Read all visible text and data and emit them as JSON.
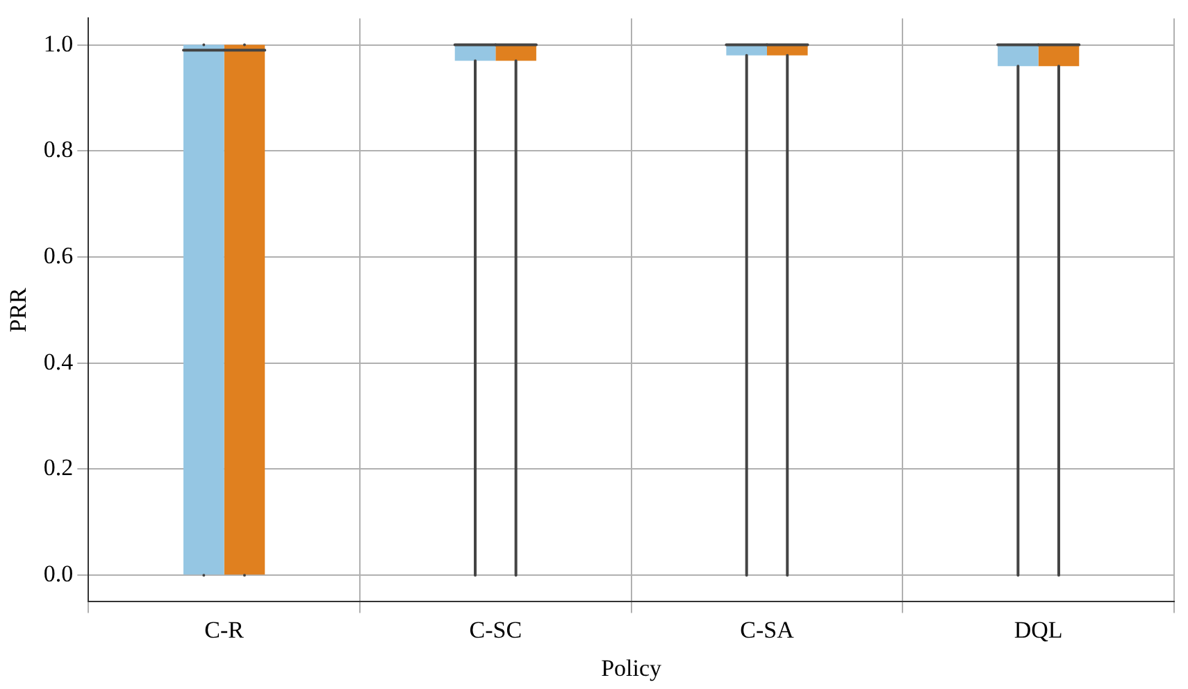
{
  "chart_data": {
    "type": "box",
    "xlabel": "Policy",
    "ylabel": "PRR",
    "categories": [
      "C-R",
      "C-SC",
      "C-SA",
      "DQL"
    ],
    "series": [
      {
        "color": "#95c6e3",
        "boxes": [
          {
            "low": 0,
            "q1": 0,
            "median": 0.99,
            "q3": 1,
            "high": 1
          },
          {
            "low": 0,
            "q1": 0.97,
            "median": 1,
            "q3": 1,
            "high": 1
          },
          {
            "low": 0,
            "q1": 0.98,
            "median": 1,
            "q3": 1,
            "high": 1
          },
          {
            "low": 0,
            "q1": 0.96,
            "median": 1,
            "q3": 1,
            "high": 1
          }
        ]
      },
      {
        "color": "#e0801f",
        "boxes": [
          {
            "low": 0,
            "q1": 0,
            "median": 0.99,
            "q3": 1,
            "high": 1
          },
          {
            "low": 0,
            "q1": 0.97,
            "median": 1,
            "q3": 1,
            "high": 1
          },
          {
            "low": 0,
            "q1": 0.98,
            "median": 1,
            "q3": 1,
            "high": 1
          },
          {
            "low": 0,
            "q1": 0.96,
            "median": 1,
            "q3": 1,
            "high": 1
          }
        ]
      }
    ],
    "ylim": [
      -0.05,
      1.05
    ],
    "yticks": [
      {
        "value": 0,
        "label": "0.0"
      },
      {
        "value": 0.2,
        "label": "0.2"
      },
      {
        "value": 0.4,
        "label": "0.4"
      },
      {
        "value": 0.6,
        "label": "0.6"
      },
      {
        "value": 0.8,
        "label": "0.8"
      },
      {
        "value": 1,
        "label": "1.0"
      }
    ],
    "grid": true
  }
}
